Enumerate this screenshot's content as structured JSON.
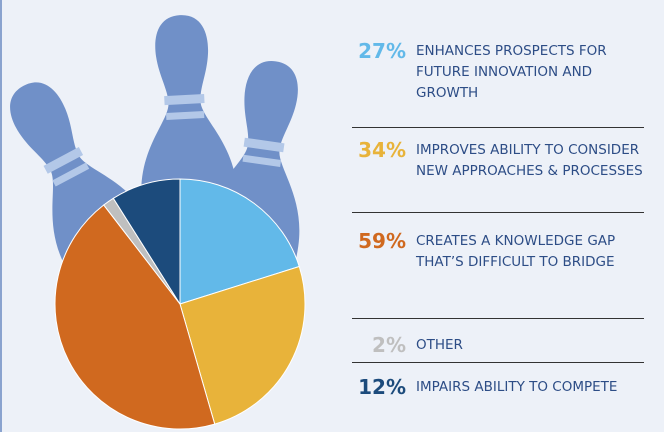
{
  "chart_data": {
    "type": "pie",
    "categories": [
      "ENHANCES PROSPECTS FOR FUTURE INNOVATION AND GROWTH",
      "IMPROVES ABILITY TO CONSIDER NEW APPROACHES & PROCESSES",
      "CREATES A KNOWLEDGE GAP THAT’S DIFFICULT TO BRIDGE",
      "OTHER",
      "IMPAIRS ABILITY TO COMPETE"
    ],
    "values": [
      27,
      34,
      59,
      2,
      12
    ],
    "value_labels": [
      "27%",
      "34%",
      "59%",
      "2%",
      "12%"
    ],
    "colors": [
      "#62b9e9",
      "#e8b33a",
      "#d0691f",
      "#bfbfbf",
      "#1c4b7c"
    ]
  }
}
